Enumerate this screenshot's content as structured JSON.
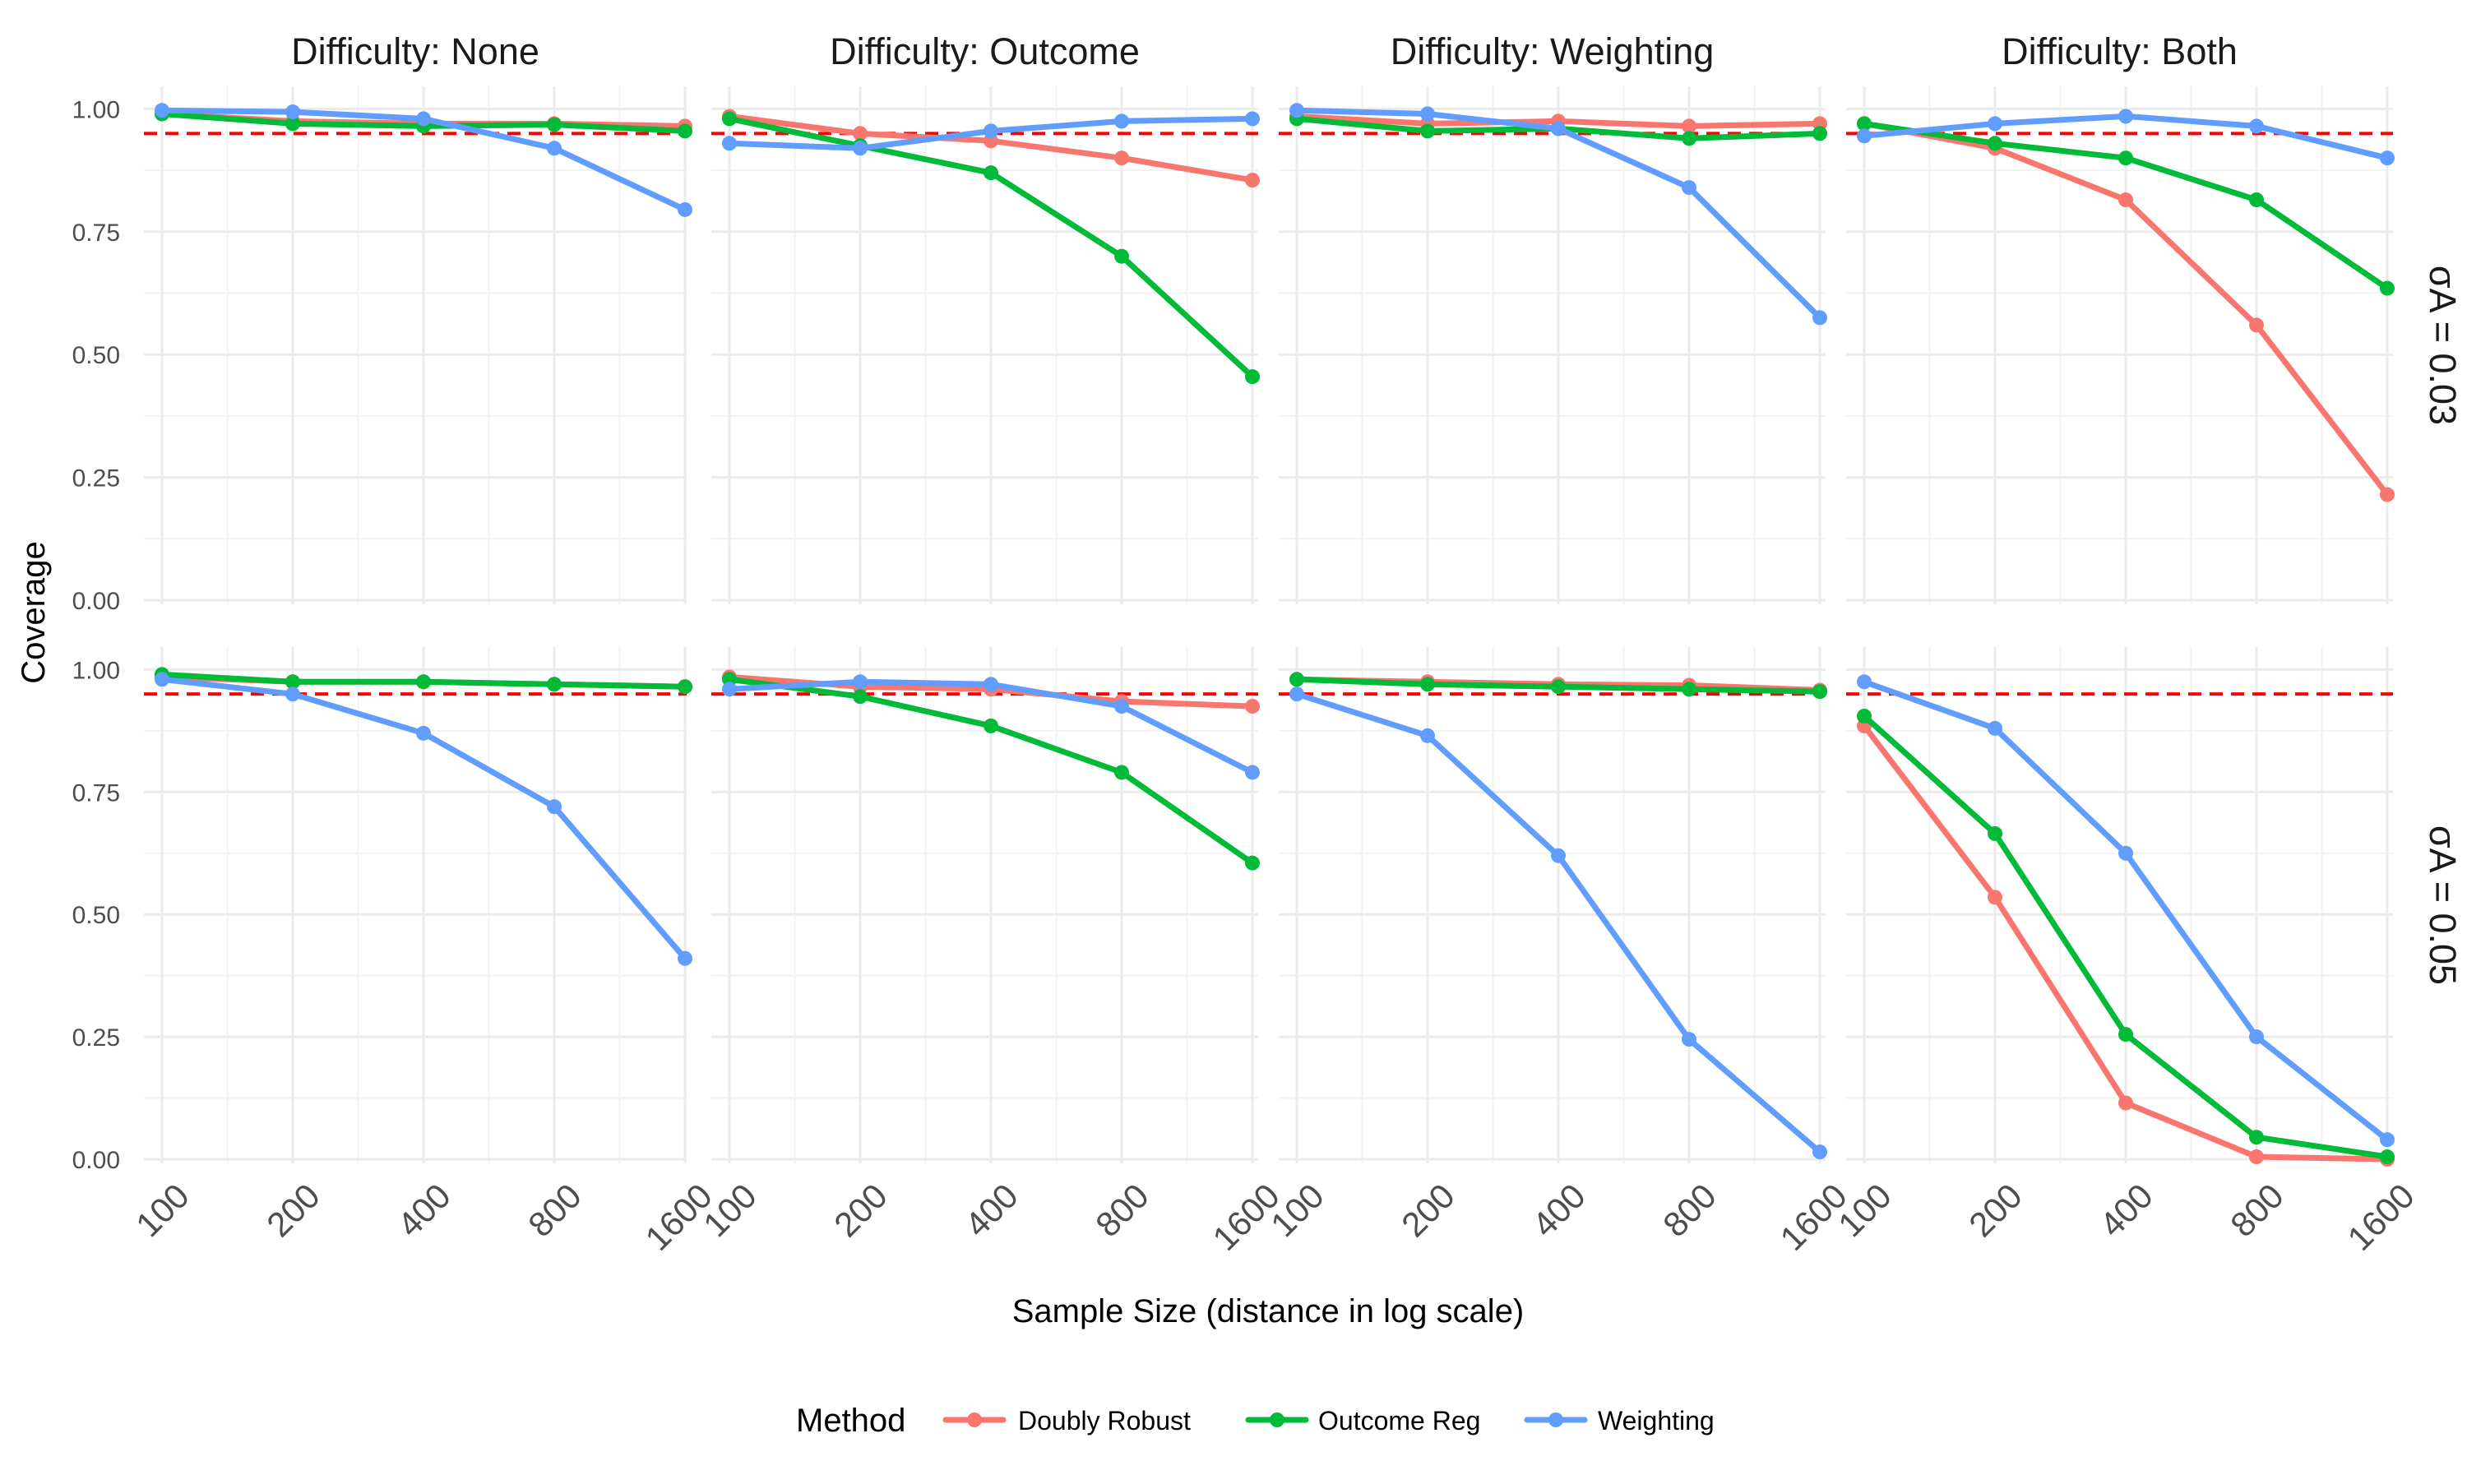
{
  "chart_data": {
    "type": "line",
    "facet_columns": [
      "Difficulty: None",
      "Difficulty: Outcome",
      "Difficulty: Weighting",
      "Difficulty: Both"
    ],
    "facet_rows": [
      "σA = 0.03",
      "σA = 0.05"
    ],
    "x": [
      100,
      200,
      400,
      800,
      1600
    ],
    "x_tick_labels": [
      "100",
      "200",
      "400",
      "800",
      "1600"
    ],
    "xlabel": "Sample Size (distance in log scale)",
    "ylabel": "Coverage",
    "ylim": [
      0,
      1
    ],
    "y_ticks": [
      0,
      0.25,
      0.5,
      0.75,
      1.0
    ],
    "y_tick_labels": [
      "0.00",
      "0.25",
      "0.50",
      "0.75",
      "1.00"
    ],
    "reference_line": {
      "y": 0.95,
      "color": "#ff0000",
      "style": "dashed"
    },
    "legend": {
      "title": "Method",
      "position": "bottom"
    },
    "series_colors": {
      "Doubly Robust": "#f8766d",
      "Outcome Reg": "#00ba38",
      "Weighting": "#619cff"
    },
    "panels": [
      {
        "row": 0,
        "col": 0,
        "series": [
          {
            "name": "Doubly Robust",
            "values": [
              0.99,
              0.975,
              0.97,
              0.97,
              0.965
            ]
          },
          {
            "name": "Outcome Reg",
            "values": [
              0.99,
              0.97,
              0.965,
              0.968,
              0.955
            ]
          },
          {
            "name": "Weighting",
            "values": [
              0.997,
              0.994,
              0.98,
              0.92,
              0.795
            ]
          }
        ]
      },
      {
        "row": 0,
        "col": 1,
        "series": [
          {
            "name": "Doubly Robust",
            "values": [
              0.985,
              0.95,
              0.935,
              0.9,
              0.855
            ]
          },
          {
            "name": "Outcome Reg",
            "values": [
              0.98,
              0.925,
              0.87,
              0.7,
              0.455
            ]
          },
          {
            "name": "Weighting",
            "values": [
              0.93,
              0.92,
              0.955,
              0.975,
              0.98
            ]
          }
        ]
      },
      {
        "row": 0,
        "col": 2,
        "series": [
          {
            "name": "Doubly Robust",
            "values": [
              0.985,
              0.97,
              0.975,
              0.965,
              0.97
            ]
          },
          {
            "name": "Outcome Reg",
            "values": [
              0.98,
              0.955,
              0.96,
              0.94,
              0.95
            ]
          },
          {
            "name": "Weighting",
            "values": [
              0.997,
              0.99,
              0.96,
              0.84,
              0.575
            ]
          }
        ]
      },
      {
        "row": 0,
        "col": 3,
        "series": [
          {
            "name": "Doubly Robust",
            "values": [
              0.97,
              0.92,
              0.815,
              0.56,
              0.215
            ]
          },
          {
            "name": "Outcome Reg",
            "values": [
              0.97,
              0.93,
              0.9,
              0.815,
              0.635
            ]
          },
          {
            "name": "Weighting",
            "values": [
              0.945,
              0.97,
              0.985,
              0.965,
              0.9
            ]
          }
        ]
      },
      {
        "row": 1,
        "col": 0,
        "series": [
          {
            "name": "Doubly Robust",
            "values": [
              0.985,
              0.975,
              0.975,
              0.97,
              0.965
            ]
          },
          {
            "name": "Outcome Reg",
            "values": [
              0.99,
              0.975,
              0.975,
              0.97,
              0.965
            ]
          },
          {
            "name": "Weighting",
            "values": [
              0.98,
              0.95,
              0.87,
              0.72,
              0.41
            ]
          }
        ]
      },
      {
        "row": 1,
        "col": 1,
        "series": [
          {
            "name": "Doubly Robust",
            "values": [
              0.985,
              0.965,
              0.96,
              0.935,
              0.925
            ]
          },
          {
            "name": "Outcome Reg",
            "values": [
              0.98,
              0.945,
              0.885,
              0.79,
              0.605
            ]
          },
          {
            "name": "Weighting",
            "values": [
              0.96,
              0.975,
              0.97,
              0.925,
              0.79
            ]
          }
        ]
      },
      {
        "row": 1,
        "col": 2,
        "series": [
          {
            "name": "Doubly Robust",
            "values": [
              0.98,
              0.975,
              0.97,
              0.968,
              0.958
            ]
          },
          {
            "name": "Outcome Reg",
            "values": [
              0.98,
              0.97,
              0.965,
              0.96,
              0.955
            ]
          },
          {
            "name": "Weighting",
            "values": [
              0.95,
              0.865,
              0.62,
              0.245,
              0.015
            ]
          }
        ]
      },
      {
        "row": 1,
        "col": 3,
        "series": [
          {
            "name": "Doubly Robust",
            "values": [
              0.885,
              0.535,
              0.115,
              0.005,
              0.0
            ]
          },
          {
            "name": "Outcome Reg",
            "values": [
              0.905,
              0.665,
              0.255,
              0.045,
              0.005
            ]
          },
          {
            "name": "Weighting",
            "values": [
              0.975,
              0.88,
              0.625,
              0.25,
              0.04
            ]
          }
        ]
      }
    ]
  }
}
